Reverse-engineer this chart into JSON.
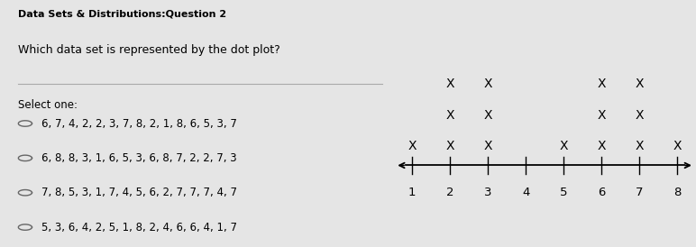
{
  "title_bold": "Data Sets & Distributions:Question 2",
  "title_normal": "Which data set is represented by the dot plot?",
  "select_one": "Select one:",
  "options": [
    "6, 7, 4, 2, 2, 3, 7, 8, 2, 1, 8, 6, 5, 3, 7",
    "6, 8, 8, 3, 1, 6, 5, 3, 6, 8, 7, 2, 2, 7, 3",
    "7, 8, 5, 3, 1, 7, 4, 5, 6, 2, 7, 7, 7, 4, 7",
    "5, 3, 6, 4, 2, 5, 1, 8, 2, 4, 6, 6, 4, 1, 7"
  ],
  "dot_counts": {
    "1": 1,
    "2": 3,
    "3": 3,
    "4": 0,
    "5": 1,
    "6": 3,
    "7": 3,
    "8": 1
  },
  "background_color": "#e5e5e5",
  "text_color": "#000000",
  "divider_color": "#aaaaaa",
  "marker_color": "#000000",
  "tick_labels": [
    "1",
    "2",
    "3",
    "4",
    "5",
    "6",
    "7",
    "8"
  ]
}
